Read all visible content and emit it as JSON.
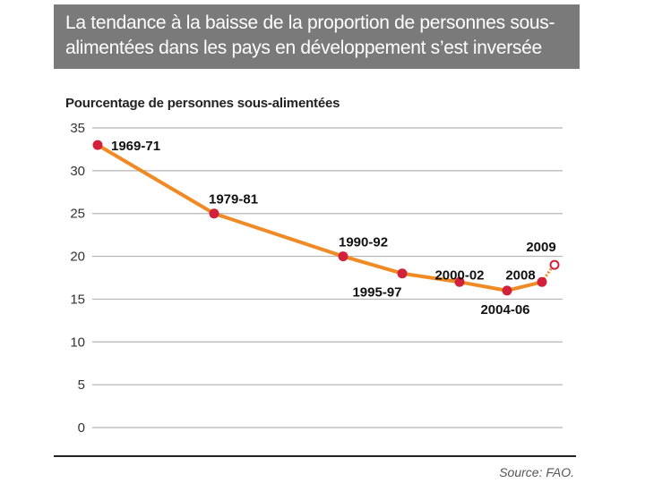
{
  "header": {
    "title_line_1": "La tendance à la baisse de la proportion de personnes sous-",
    "title_line_2": "alimentées dans les pays en développement s’est inversée"
  },
  "source": "Source: FAO.",
  "chart_data": {
    "type": "line",
    "title": "La tendance à la baisse de la proportion de personnes sous-alimentées dans les pays en développement s’est inversée",
    "ylabel": "Pourcentage de personnes sous-alimentées",
    "xlabel": "",
    "ylim": [
      0,
      35
    ],
    "yticks": [
      0,
      5,
      10,
      15,
      20,
      25,
      30,
      35
    ],
    "grid": true,
    "colors": {
      "line": "#f08a24",
      "marker": "#d2213a",
      "estimate_marker": "#d2213a",
      "grid": "#b5b5b5"
    },
    "series": [
      {
        "name": "Pourcentage de personnes sous-alimentées",
        "points": [
          {
            "label": "1969-71",
            "value": 33,
            "estimate": false
          },
          {
            "label": "1979-81",
            "value": 25,
            "estimate": false
          },
          {
            "label": "1990-92",
            "value": 20,
            "estimate": false
          },
          {
            "label": "1995-97",
            "value": 18,
            "estimate": false
          },
          {
            "label": "2000-02",
            "value": 17,
            "estimate": false
          },
          {
            "label": "2004-06",
            "value": 16,
            "estimate": false
          },
          {
            "label": "2008",
            "value": 17,
            "estimate": false
          },
          {
            "label": "2009",
            "value": 19,
            "estimate": true
          }
        ]
      }
    ]
  }
}
